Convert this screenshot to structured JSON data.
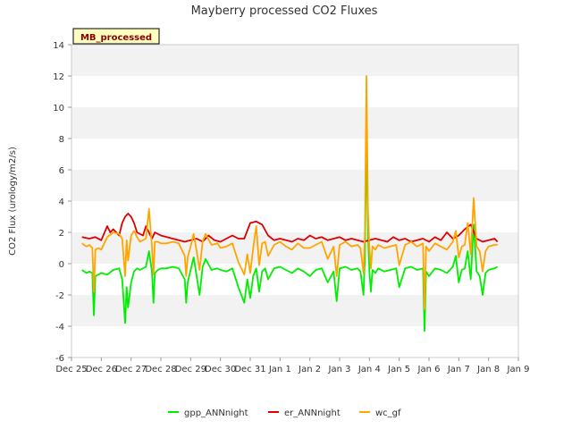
{
  "chart_data": {
    "type": "line",
    "title": "Mayberry processed CO2 Fluxes",
    "badge": "MB_processed",
    "ylabel": "CO2 Flux (urology/m2/s)",
    "xlabel": "",
    "ylim": [
      -6,
      14
    ],
    "yticks": [
      -6,
      -4,
      -2,
      0,
      2,
      4,
      6,
      8,
      10,
      12,
      14
    ],
    "xlim": [
      0,
      15
    ],
    "xticks": [
      {
        "v": 0,
        "label": "Dec 25"
      },
      {
        "v": 1,
        "label": "Dec 26"
      },
      {
        "v": 2,
        "label": "Dec 27"
      },
      {
        "v": 3,
        "label": "Dec 28"
      },
      {
        "v": 4,
        "label": "Dec 29"
      },
      {
        "v": 5,
        "label": "Dec 30"
      },
      {
        "v": 6,
        "label": "Dec 31"
      },
      {
        "v": 7,
        "label": "Jan 1"
      },
      {
        "v": 8,
        "label": "Jan 2"
      },
      {
        "v": 9,
        "label": "Jan 3"
      },
      {
        "v": 10,
        "label": "Jan 4"
      },
      {
        "v": 11,
        "label": "Jan 5"
      },
      {
        "v": 12,
        "label": "Jan 6"
      },
      {
        "v": 13,
        "label": "Jan 7"
      },
      {
        "v": 14,
        "label": "Jan 8"
      },
      {
        "v": 15,
        "label": "Jan 9"
      }
    ],
    "grid": true,
    "legend_position": "bottom",
    "series": [
      {
        "name": "gpp_ANNnight",
        "color": "#00ee00",
        "x": [
          0.35,
          0.5,
          0.6,
          0.7,
          0.75,
          0.8,
          0.9,
          1.0,
          1.2,
          1.4,
          1.6,
          1.7,
          1.8,
          1.85,
          1.9,
          2.0,
          2.1,
          2.2,
          2.3,
          2.5,
          2.6,
          2.7,
          2.75,
          2.8,
          2.9,
          3.0,
          3.2,
          3.4,
          3.6,
          3.8,
          3.85,
          3.9,
          4.0,
          4.1,
          4.2,
          4.3,
          4.4,
          4.5,
          4.7,
          4.9,
          5.0,
          5.2,
          5.4,
          5.6,
          5.8,
          5.9,
          6.0,
          6.1,
          6.2,
          6.3,
          6.4,
          6.5,
          6.6,
          6.8,
          7.0,
          7.2,
          7.4,
          7.6,
          7.8,
          8.0,
          8.2,
          8.4,
          8.6,
          8.8,
          8.9,
          9.0,
          9.2,
          9.4,
          9.6,
          9.7,
          9.8,
          9.85,
          9.9,
          9.95,
          10.0,
          10.05,
          10.1,
          10.2,
          10.3,
          10.5,
          10.7,
          10.9,
          11.0,
          11.2,
          11.4,
          11.6,
          11.8,
          11.85,
          11.9,
          12.0,
          12.2,
          12.4,
          12.6,
          12.8,
          12.9,
          13.0,
          13.1,
          13.2,
          13.3,
          13.4,
          13.5,
          13.6,
          13.7,
          13.8,
          13.9,
          14.0,
          14.2,
          14.3
        ],
        "values": [
          -0.4,
          -0.6,
          -0.5,
          -0.6,
          -3.3,
          -0.8,
          -0.7,
          -0.6,
          -0.7,
          -0.4,
          -0.3,
          -1.0,
          -3.8,
          -1.5,
          -2.8,
          -1.2,
          -0.5,
          -0.3,
          -0.4,
          -0.2,
          0.8,
          -0.5,
          -2.5,
          -0.6,
          -0.4,
          -0.3,
          -0.3,
          -0.2,
          -0.3,
          -1.0,
          -2.5,
          -1.2,
          -0.4,
          0.4,
          -0.8,
          -2.0,
          -0.2,
          0.3,
          -0.4,
          -0.3,
          -0.4,
          -0.5,
          -0.3,
          -1.5,
          -2.5,
          -1.0,
          -2.2,
          -0.8,
          -0.3,
          -1.8,
          -0.5,
          -0.3,
          -1.0,
          -0.3,
          -0.2,
          -0.4,
          -0.6,
          -0.3,
          -0.5,
          -0.8,
          -0.4,
          -0.3,
          -1.2,
          -0.5,
          -2.4,
          -0.3,
          -0.2,
          -0.4,
          -0.3,
          -0.5,
          -2.0,
          0.5,
          8.5,
          2.0,
          -0.5,
          -1.8,
          -0.4,
          -0.6,
          -0.3,
          -0.5,
          -0.4,
          -0.3,
          -1.5,
          -0.3,
          -0.2,
          -0.4,
          -0.3,
          -4.3,
          -0.5,
          -0.8,
          -0.3,
          -0.4,
          -0.6,
          -0.2,
          0.5,
          -1.2,
          -0.4,
          -0.3,
          0.8,
          -1.0,
          2.5,
          -0.5,
          -0.8,
          -2.0,
          -0.6,
          -0.4,
          -0.3,
          -0.2
        ]
      },
      {
        "name": "er_ANNnight",
        "color": "#dd0000",
        "x": [
          0.35,
          0.6,
          0.8,
          1.0,
          1.2,
          1.3,
          1.4,
          1.6,
          1.7,
          1.8,
          1.9,
          2.0,
          2.1,
          2.2,
          2.4,
          2.5,
          2.7,
          2.8,
          3.0,
          3.2,
          3.4,
          3.6,
          3.8,
          4.0,
          4.2,
          4.4,
          4.6,
          4.8,
          5.0,
          5.2,
          5.4,
          5.6,
          5.8,
          6.0,
          6.2,
          6.4,
          6.6,
          6.8,
          7.0,
          7.2,
          7.4,
          7.6,
          7.8,
          8.0,
          8.2,
          8.4,
          8.6,
          8.8,
          9.0,
          9.2,
          9.4,
          9.6,
          9.8,
          10.0,
          10.2,
          10.4,
          10.6,
          10.8,
          11.0,
          11.2,
          11.4,
          11.6,
          11.8,
          12.0,
          12.2,
          12.4,
          12.6,
          12.8,
          13.0,
          13.2,
          13.4,
          13.6,
          13.8,
          14.0,
          14.2,
          14.3
        ],
        "values": [
          1.7,
          1.6,
          1.7,
          1.5,
          2.4,
          2.0,
          2.2,
          1.8,
          2.6,
          3.0,
          3.2,
          3.0,
          2.6,
          2.0,
          1.8,
          2.4,
          1.6,
          2.0,
          1.8,
          1.7,
          1.6,
          1.5,
          1.4,
          1.5,
          1.6,
          1.4,
          1.8,
          1.5,
          1.4,
          1.6,
          1.8,
          1.6,
          1.6,
          2.6,
          2.7,
          2.5,
          1.8,
          1.5,
          1.6,
          1.5,
          1.4,
          1.6,
          1.5,
          1.8,
          1.6,
          1.7,
          1.5,
          1.6,
          1.7,
          1.5,
          1.6,
          1.5,
          1.4,
          1.5,
          1.6,
          1.5,
          1.4,
          1.7,
          1.5,
          1.6,
          1.4,
          1.5,
          1.6,
          1.4,
          1.7,
          1.5,
          2.0,
          1.6,
          1.8,
          2.2,
          2.5,
          1.6,
          1.4,
          1.5,
          1.6,
          1.4
        ]
      },
      {
        "name": "wc_gf",
        "color": "#ffa500",
        "x": [
          0.35,
          0.5,
          0.6,
          0.7,
          0.75,
          0.8,
          0.9,
          1.0,
          1.2,
          1.4,
          1.6,
          1.7,
          1.8,
          1.85,
          1.9,
          2.0,
          2.1,
          2.2,
          2.3,
          2.5,
          2.6,
          2.7,
          2.75,
          2.8,
          2.9,
          3.0,
          3.2,
          3.4,
          3.6,
          3.8,
          3.85,
          3.9,
          4.0,
          4.1,
          4.2,
          4.3,
          4.4,
          4.5,
          4.7,
          4.9,
          5.0,
          5.2,
          5.4,
          5.6,
          5.8,
          5.9,
          6.0,
          6.1,
          6.2,
          6.3,
          6.4,
          6.5,
          6.6,
          6.8,
          7.0,
          7.2,
          7.4,
          7.6,
          7.8,
          8.0,
          8.2,
          8.4,
          8.6,
          8.8,
          8.9,
          9.0,
          9.2,
          9.4,
          9.6,
          9.7,
          9.8,
          9.85,
          9.9,
          9.95,
          10.0,
          10.05,
          10.1,
          10.2,
          10.3,
          10.5,
          10.7,
          10.9,
          11.0,
          11.2,
          11.4,
          11.6,
          11.8,
          11.85,
          11.9,
          12.0,
          12.2,
          12.4,
          12.6,
          12.8,
          12.9,
          13.0,
          13.1,
          13.2,
          13.3,
          13.4,
          13.5,
          13.6,
          13.7,
          13.8,
          13.9,
          14.0,
          14.2,
          14.3
        ],
        "values": [
          1.3,
          1.1,
          1.2,
          1.0,
          -1.8,
          0.9,
          1.0,
          0.9,
          1.7,
          2.0,
          1.9,
          1.6,
          -0.8,
          1.5,
          0.2,
          1.8,
          2.1,
          1.7,
          1.4,
          1.6,
          3.5,
          1.1,
          -0.7,
          1.4,
          1.4,
          1.3,
          1.3,
          1.4,
          1.3,
          0.5,
          -0.8,
          0.4,
          1.1,
          1.9,
          0.8,
          -0.4,
          1.4,
          1.9,
          1.2,
          1.3,
          1.0,
          1.1,
          1.3,
          0.1,
          -0.7,
          0.6,
          -0.6,
          1.0,
          2.4,
          -0.1,
          1.3,
          1.4,
          0.5,
          1.2,
          1.4,
          1.1,
          0.9,
          1.3,
          1.0,
          1.0,
          1.2,
          1.4,
          0.3,
          1.1,
          -0.8,
          1.2,
          1.4,
          1.1,
          1.2,
          1.0,
          -0.6,
          2.0,
          12.0,
          3.5,
          1.0,
          -0.3,
          1.1,
          0.9,
          1.2,
          1.0,
          1.1,
          1.2,
          -0.1,
          1.2,
          1.4,
          1.1,
          1.3,
          -2.9,
          1.1,
          0.8,
          1.3,
          1.1,
          0.9,
          1.4,
          2.1,
          0.4,
          1.1,
          1.2,
          2.6,
          0.6,
          4.2,
          1.1,
          0.8,
          -0.5,
          0.8,
          1.1,
          1.2,
          1.2
        ]
      }
    ]
  }
}
